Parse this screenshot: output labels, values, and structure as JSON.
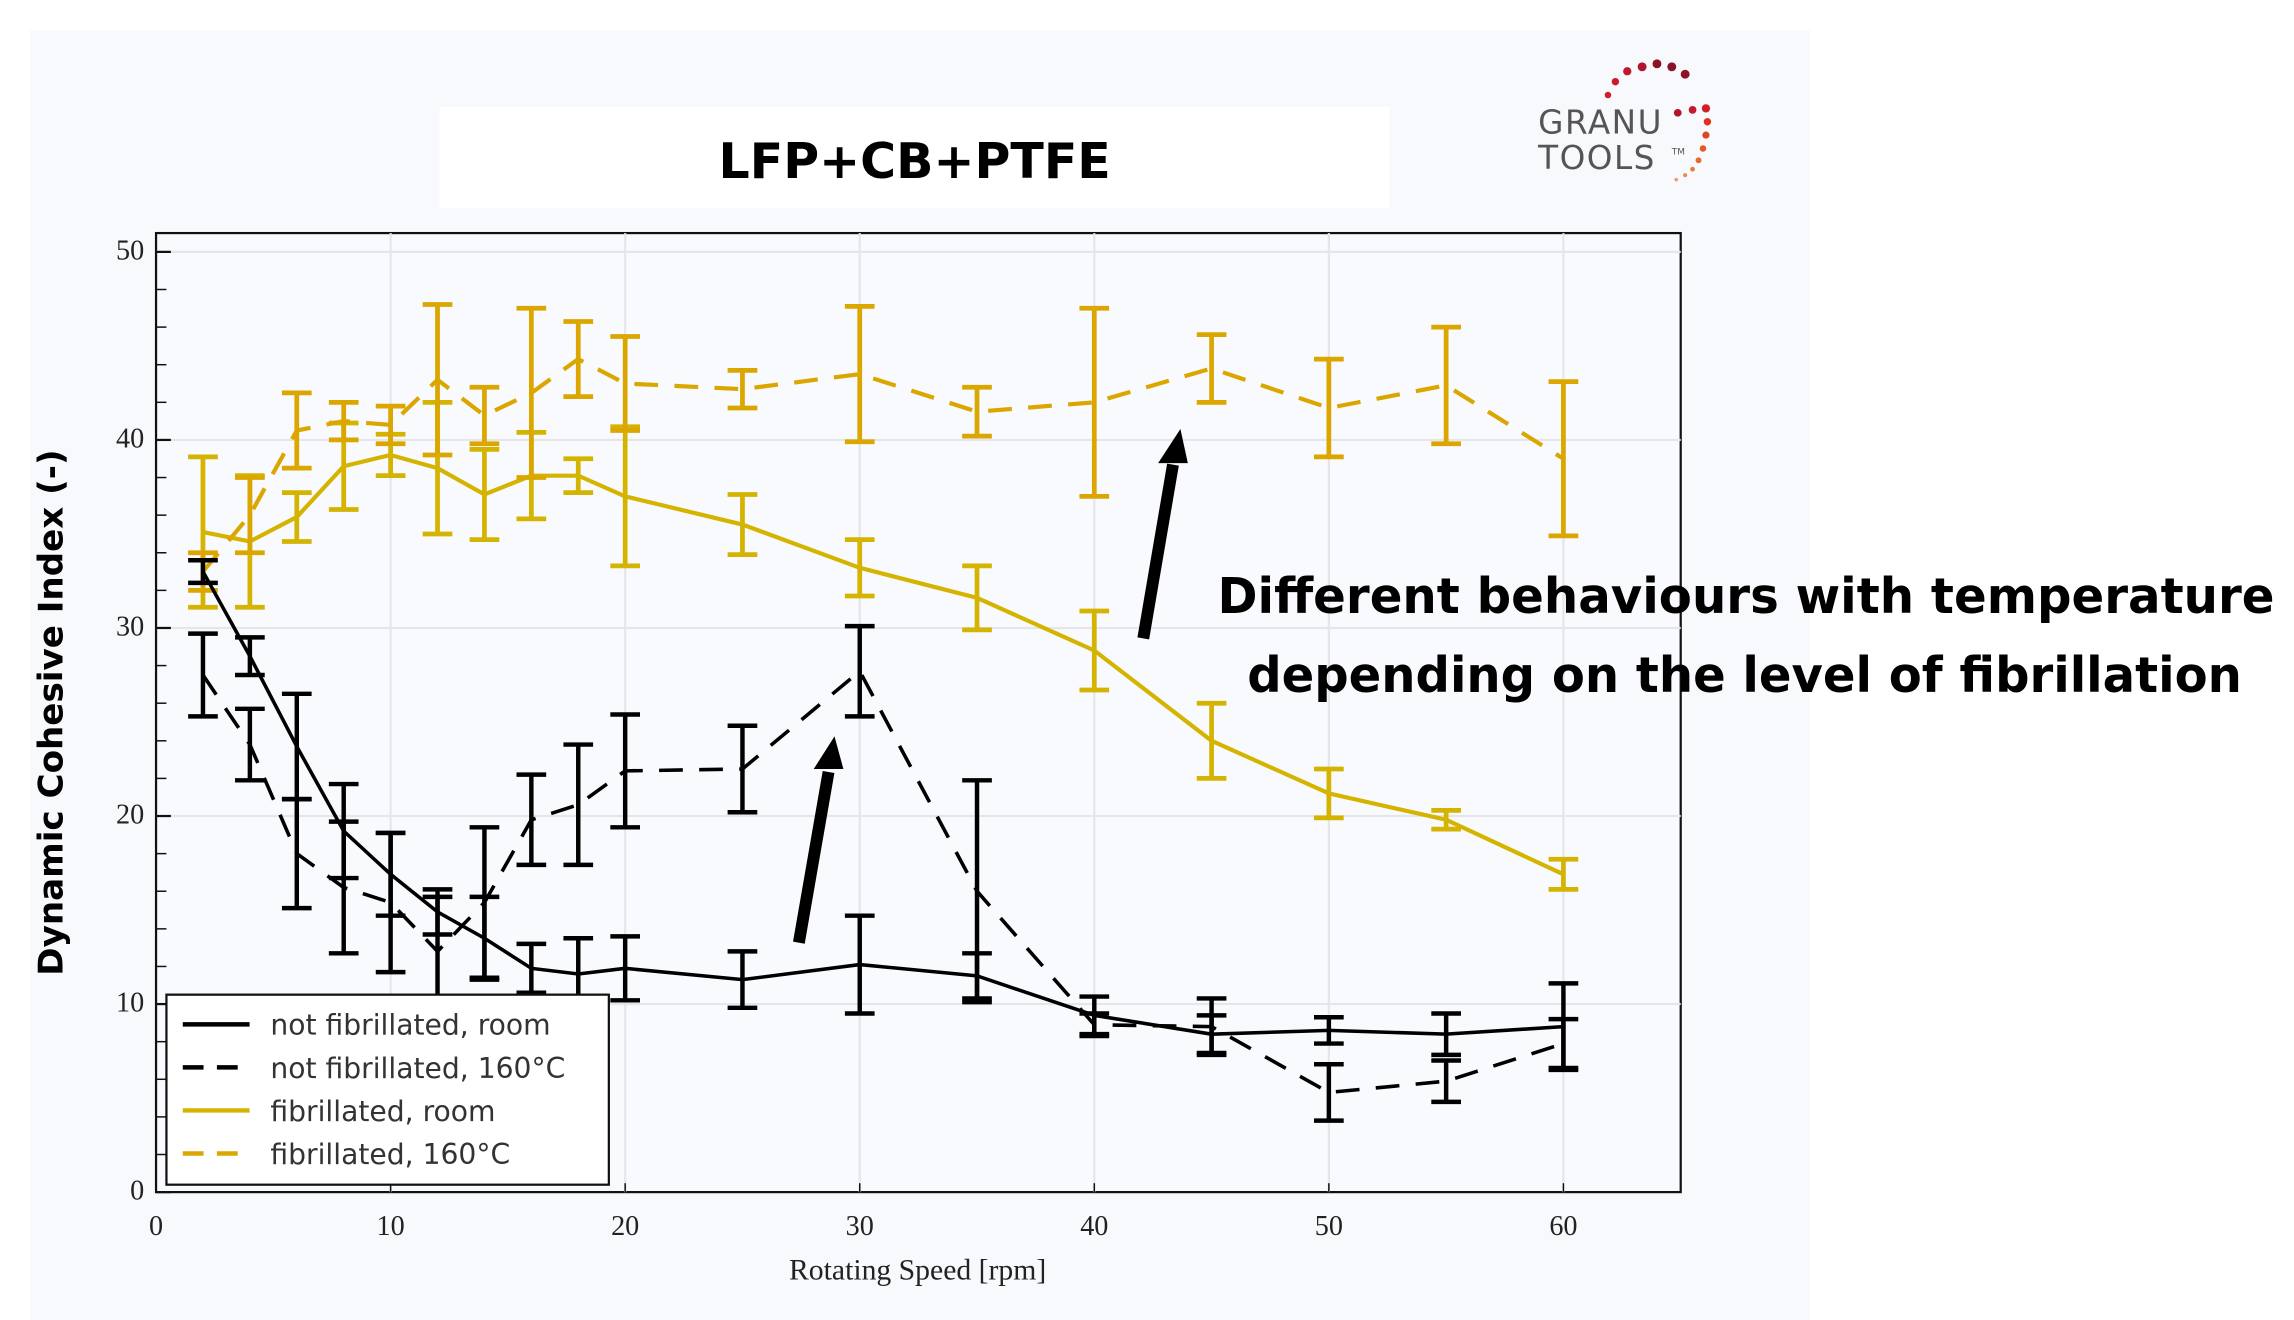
{
  "title": "LFP+CB+PTFE",
  "logo": {
    "line1": "GRANU",
    "line2": "TOOLS",
    "tm": "TM"
  },
  "annotation": {
    "line1": "Different behaviours with temperature",
    "line2": "depending on the level of fibrillation"
  },
  "chart_data": {
    "type": "line",
    "title": "LFP+CB+PTFE",
    "xlabel": "Rotating Speed [rpm]",
    "ylabel": "Dynamic Cohesive Index (-)",
    "xlim": [
      0,
      65
    ],
    "ylim": [
      0,
      51
    ],
    "xticks": [
      0,
      10,
      20,
      30,
      40,
      50,
      60
    ],
    "yticks": [
      0,
      10,
      20,
      30,
      40,
      50
    ],
    "xtick_labels": [
      "0",
      "10",
      "20",
      "30",
      "40",
      "50",
      "60"
    ],
    "ytick_labels": [
      "0",
      "10",
      "20",
      "30",
      "40",
      "50"
    ],
    "grid": true,
    "legend_position": "bottom-left",
    "x": [
      2,
      4,
      6,
      8,
      10,
      12,
      14,
      16,
      18,
      20,
      25,
      30,
      35,
      40,
      45,
      50,
      55,
      60
    ],
    "series": [
      {
        "name": "not fibrillated, room",
        "color": "#000000",
        "dash": "solid",
        "values": [
          33.0,
          28.5,
          23.7,
          19.2,
          16.9,
          14.9,
          13.5,
          11.9,
          11.6,
          11.9,
          11.3,
          12.1,
          11.5,
          9.4,
          8.4,
          8.6,
          8.4,
          8.8
        ],
        "errors": [
          0.6,
          1.0,
          2.8,
          2.5,
          2.2,
          1.2,
          2.2,
          1.3,
          1.9,
          1.7,
          1.5,
          2.6,
          1.2,
          1.0,
          1.0,
          0.7,
          1.1,
          2.3
        ]
      },
      {
        "name": "not fibrillated, 160°C",
        "color": "#000000",
        "dash": "dashed",
        "values": [
          27.5,
          23.8,
          18.0,
          16.2,
          15.4,
          12.8,
          15.4,
          19.8,
          20.6,
          22.4,
          22.5,
          27.7,
          16.0,
          8.9,
          8.8,
          5.3,
          5.9,
          7.9
        ],
        "errors": [
          2.2,
          1.9,
          2.9,
          3.5,
          3.7,
          2.9,
          4.0,
          2.4,
          3.2,
          3.0,
          2.3,
          2.4,
          5.9,
          0.6,
          1.5,
          1.5,
          1.1,
          1.3
        ]
      },
      {
        "name": "fibrillated, room",
        "color": "#d4b400",
        "dash": "solid",
        "values": [
          35.1,
          34.6,
          35.9,
          38.6,
          39.2,
          38.5,
          37.1,
          38.1,
          38.1,
          37.0,
          35.5,
          33.2,
          31.6,
          28.8,
          24.0,
          21.2,
          19.8,
          16.9
        ],
        "errors": [
          4.0,
          3.5,
          1.3,
          2.3,
          1.1,
          3.5,
          2.4,
          2.3,
          0.9,
          3.7,
          1.6,
          1.5,
          1.7,
          2.1,
          2.0,
          1.3,
          0.5,
          0.8
        ]
      },
      {
        "name": "fibrillated, 160°C",
        "color": "#dba600",
        "dash": "dashed",
        "values": [
          33.0,
          36.0,
          40.5,
          41.0,
          40.8,
          43.2,
          41.3,
          42.5,
          44.3,
          43.0,
          42.7,
          43.5,
          41.5,
          42.0,
          43.8,
          41.7,
          42.9,
          39.0
        ],
        "errors": [
          1.0,
          2.0,
          2.0,
          1.0,
          1.0,
          4.0,
          1.5,
          4.5,
          2.0,
          2.5,
          1.0,
          3.6,
          1.3,
          5.0,
          1.8,
          2.6,
          3.1,
          4.1
        ]
      }
    ]
  }
}
